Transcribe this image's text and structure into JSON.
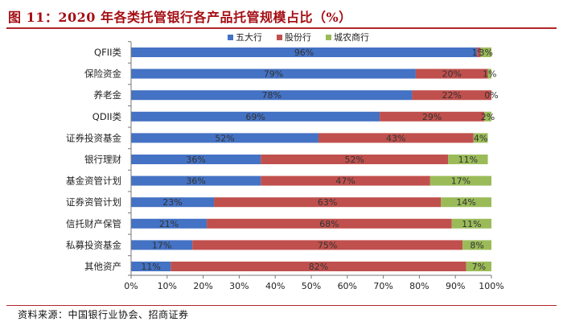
{
  "title": "图 11：2020 年各类托管银行各产品托管规模占比（%）",
  "source": "资料来源：中国银行业协会、招商证券",
  "colors": {
    "s0": "#4472c4",
    "s1": "#c0504d",
    "s2": "#9bbb59",
    "title": "#a50f14"
  },
  "chart_data": {
    "type": "bar",
    "orientation": "horizontal",
    "stacked": true,
    "categories": [
      "QFII类",
      "保险资金",
      "养老金",
      "QDII类",
      "证券投资基金",
      "银行理财",
      "基金资管计划",
      "证券资管计划",
      "信托财产保管",
      "私募投资基金",
      "其他资产"
    ],
    "series": [
      {
        "name": "五大行",
        "values": [
          96,
          79,
          78,
          69,
          52,
          36,
          36,
          23,
          21,
          17,
          11
        ],
        "labels": [
          "96%",
          "79%",
          "78%",
          "69%",
          "52%",
          "36%",
          "36%",
          "23%",
          "21%",
          "17%",
          "11%"
        ]
      },
      {
        "name": "股份行",
        "values": [
          1,
          20,
          22,
          29,
          43,
          52,
          47,
          63,
          68,
          75,
          82
        ],
        "labels": [
          "1%",
          "20%",
          "22%",
          "29%",
          "43%",
          "52%",
          "47%",
          "63%",
          "68%",
          "75%",
          "82%"
        ]
      },
      {
        "name": "城农商行",
        "values": [
          3,
          1,
          0,
          2,
          4,
          11,
          17,
          14,
          11,
          8,
          7
        ],
        "labels": [
          "3%",
          "1%",
          "0%",
          "2%",
          "4%",
          "11%",
          "17%",
          "14%",
          "11%",
          "8%",
          "7%"
        ]
      }
    ],
    "xticks": [
      "0%",
      "10%",
      "20%",
      "30%",
      "40%",
      "50%",
      "60%",
      "70%",
      "80%",
      "90%",
      "100%"
    ],
    "xlim": [
      0,
      100
    ],
    "legend_position": "top",
    "grid": false
  }
}
